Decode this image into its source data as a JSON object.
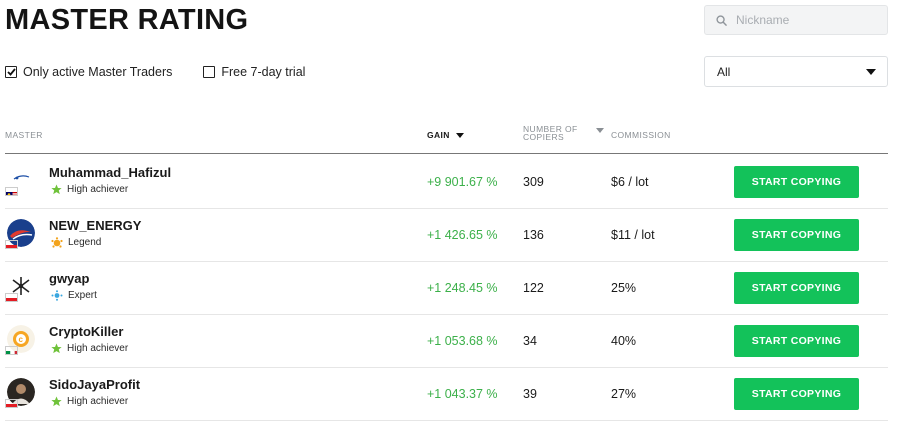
{
  "page": {
    "title": "MASTER RATING"
  },
  "search": {
    "placeholder": "Nickname"
  },
  "filters": {
    "only_active": {
      "label": "Only active Master Traders",
      "checked": true
    },
    "free_trial": {
      "label": "Free 7-day trial",
      "checked": false
    }
  },
  "select": {
    "value": "All"
  },
  "table": {
    "headers": {
      "master": "MASTER",
      "gain": "GAIN",
      "copiers_line1": "NUMBER OF",
      "copiers_line2": "COPIERS",
      "commission": "COMMISSION"
    },
    "rows": [
      {
        "name": "Muhammad_Hafizul",
        "rank": "High achiever",
        "rank_icon": "star-icon",
        "flag": "malaysia-flag",
        "gain": "+9 901.67 %",
        "copiers": "309",
        "commission": "$6 / lot",
        "button": "START COPYING"
      },
      {
        "name": "NEW_ENERGY",
        "rank": "Legend",
        "rank_icon": "crown-icon",
        "flag": "indonesia-flag",
        "gain": "+1 426.65 %",
        "copiers": "136",
        "commission": "$11 / lot",
        "button": "START COPYING"
      },
      {
        "name": "gwyap",
        "rank": "Expert",
        "rank_icon": "gem-icon",
        "flag": "indonesia-flag",
        "gain": "+1 248.45 %",
        "copiers": "122",
        "commission": "25%",
        "button": "START COPYING"
      },
      {
        "name": "CryptoKiller",
        "rank": "High achiever",
        "rank_icon": "star-icon",
        "flag": "italy-flag",
        "gain": "+1 053.68 %",
        "copiers": "34",
        "commission": "40%",
        "button": "START COPYING"
      },
      {
        "name": "SidoJayaProfit",
        "rank": "High achiever",
        "rank_icon": "star-icon",
        "flag": "indonesia-flag",
        "gain": "+1 043.37 %",
        "copiers": "39",
        "commission": "27%",
        "button": "START COPYING"
      }
    ]
  },
  "colors": {
    "gain": "#3cb04a",
    "button": "#13c25a",
    "text": "#1a1a1a"
  }
}
